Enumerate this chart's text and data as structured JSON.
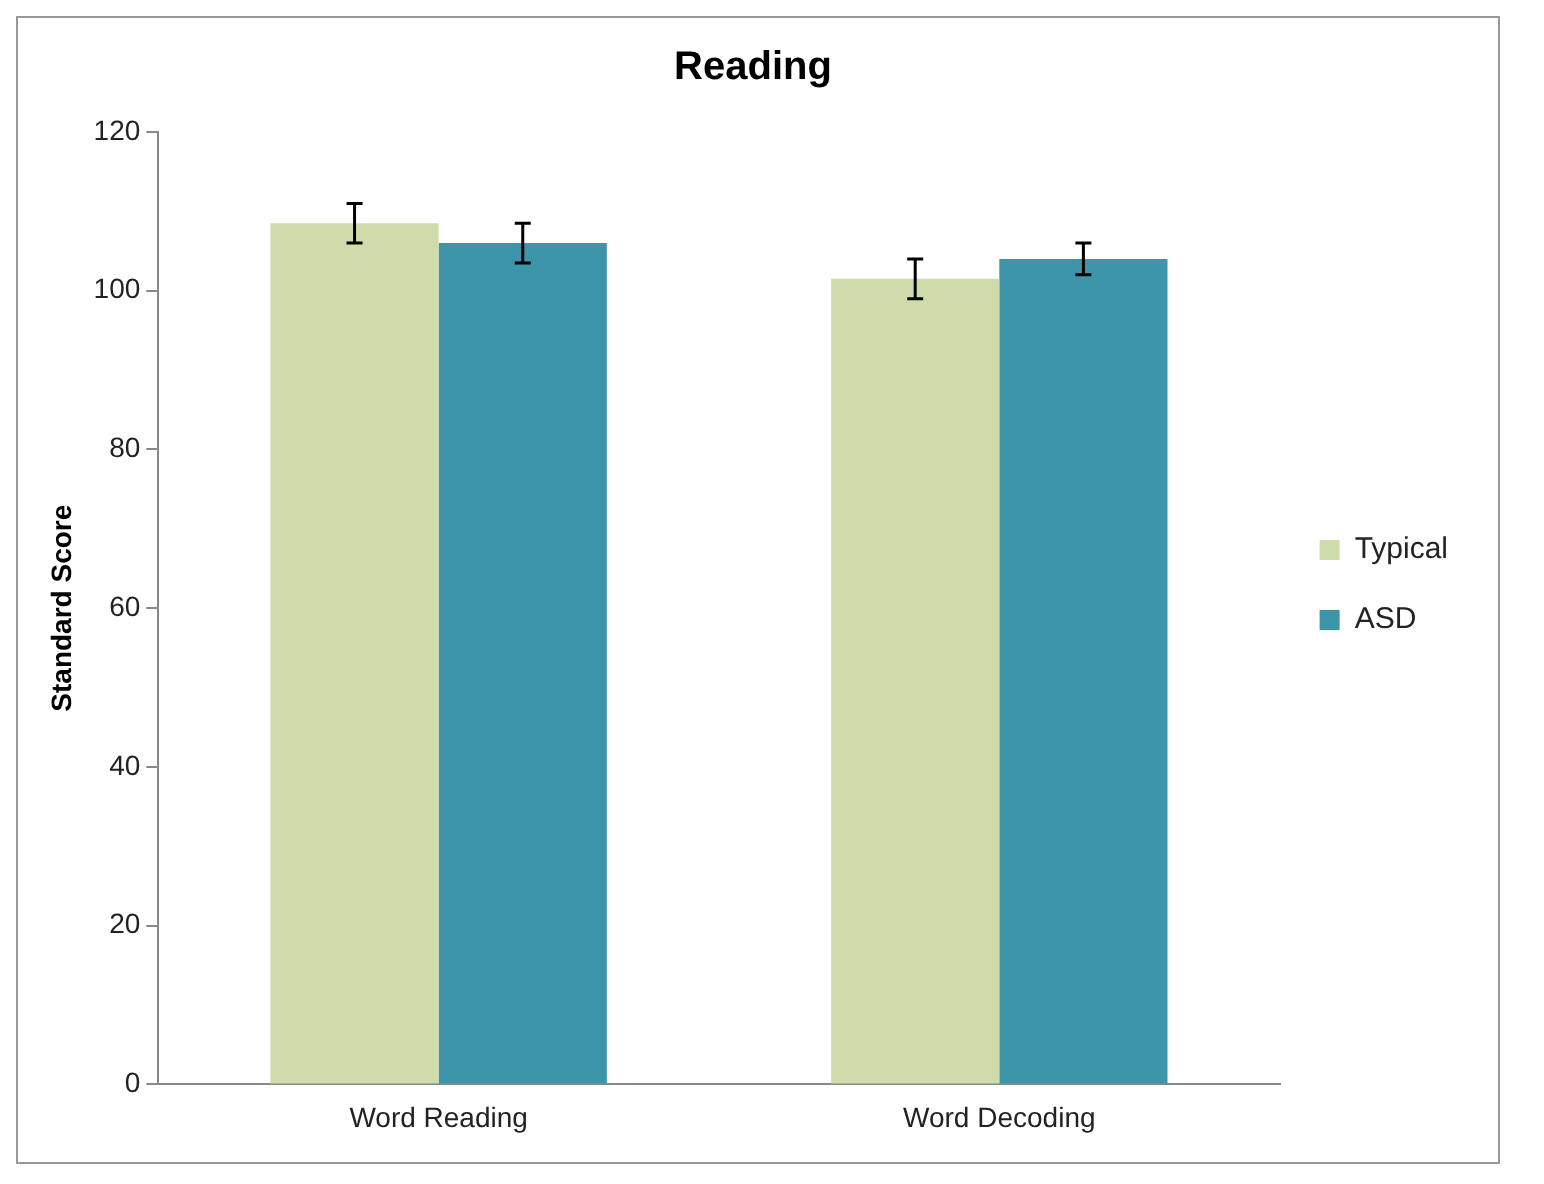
{
  "chart_data": {
    "type": "bar",
    "title": "Reading",
    "ylabel": "Standard Score",
    "categories": [
      "Word Reading",
      "Word Decoding"
    ],
    "series": [
      {
        "name": "Typical",
        "color": "#cddca9",
        "values": [
          108.5,
          101.5
        ],
        "errors": [
          2.5,
          2.5
        ]
      },
      {
        "name": "ASD",
        "color": "#3d95aa",
        "values": [
          106,
          104
        ],
        "errors": [
          2.5,
          2
        ]
      }
    ],
    "ylim": [
      0,
      120
    ],
    "yticks": [
      0,
      20,
      40,
      60,
      80,
      100,
      120
    ],
    "grid": false,
    "legend": "right"
  }
}
